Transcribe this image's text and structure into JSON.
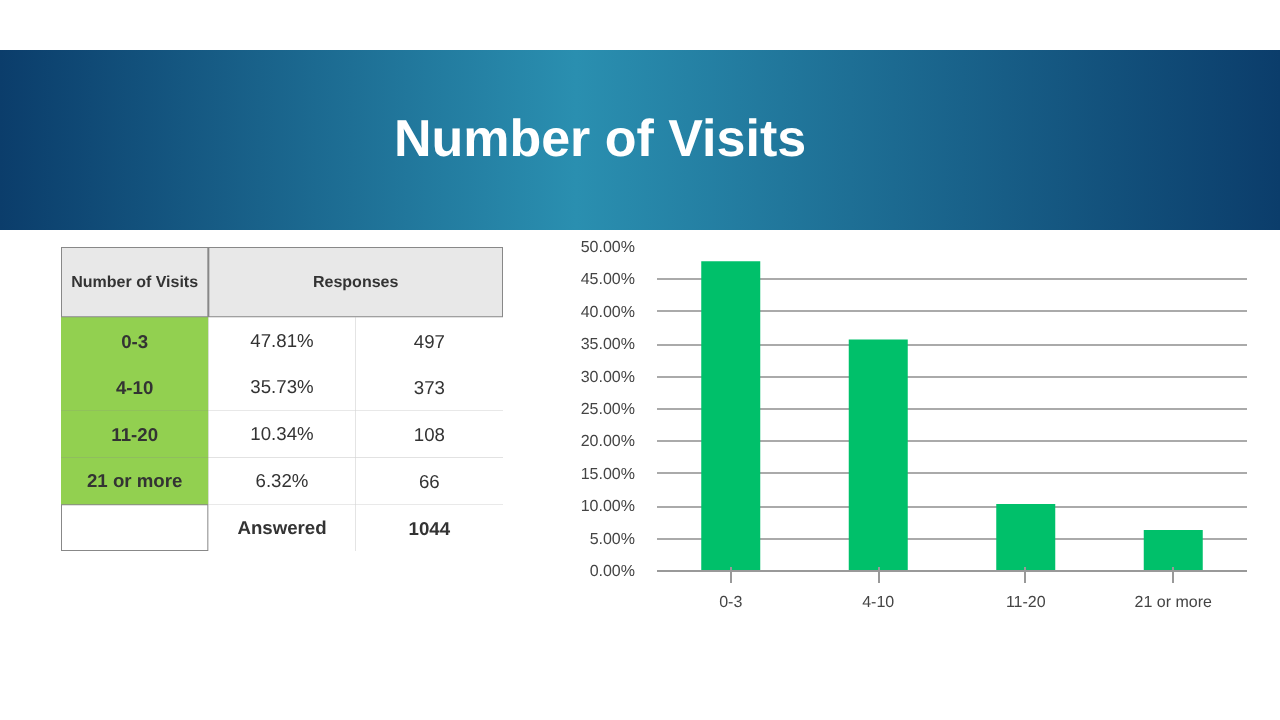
{
  "chart_data": [
    {
      "type": "other",
      "annotations": [
        "Number of Visits",
        "Responses",
        "0-3",
        "47.81%",
        "497",
        "4-10",
        "35.73%",
        "373",
        "11-20",
        "10.34%",
        "108",
        "21 or more",
        "6.32%",
        "66",
        "Answered",
        "1044"
      ]
    },
    {
      "type": "bar",
      "title": "Number of Visits",
      "categories": [
        "0-3",
        "4-10",
        "11-20",
        "21 or more"
      ],
      "values": [
        47.81,
        35.73,
        10.34,
        6.32
      ],
      "color": "#00c06a",
      "ylim": [
        0,
        50
      ],
      "yticks": [
        {
          "value": 0,
          "label": "0.00%"
        },
        {
          "value": 5,
          "label": "5.00%"
        },
        {
          "value": 10,
          "label": "10.00%"
        },
        {
          "value": 15,
          "label": "15.00%"
        },
        {
          "value": 20,
          "label": "20.00%"
        },
        {
          "value": 25,
          "label": "25.00%"
        },
        {
          "value": 30,
          "label": "30.00%"
        },
        {
          "value": 35,
          "label": "35.00%"
        },
        {
          "value": 40,
          "label": "40.00%"
        },
        {
          "value": 45,
          "label": "45.00%"
        },
        {
          "value": 50,
          "label": "50.00%"
        }
      ],
      "grid": "y"
    }
  ]
}
